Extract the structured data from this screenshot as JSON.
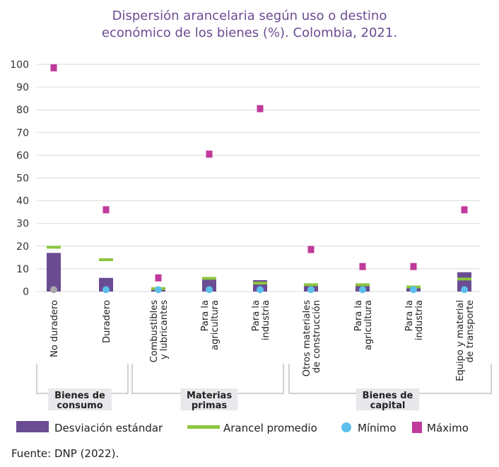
{
  "chart_data": {
    "type": "bar",
    "title_lines": [
      "Dispersión arancelaria según uso o destino",
      "económico de los bienes (%). Colombia, 2021."
    ],
    "ylim": [
      0,
      100
    ],
    "yticks": [
      "0",
      "10",
      "20",
      "30",
      "40",
      "50",
      "60",
      "70",
      "80",
      "90",
      "100"
    ],
    "categories": [
      {
        "lines": [
          "No duradero"
        ]
      },
      {
        "lines": [
          "Duradero"
        ]
      },
      {
        "lines": [
          "Combustibles",
          "y lubricantes"
        ]
      },
      {
        "lines": [
          "Para la",
          "agricultura"
        ]
      },
      {
        "lines": [
          "Para la",
          "industria"
        ]
      },
      {
        "lines": [
          "Otros materiales",
          "de construcción"
        ]
      },
      {
        "lines": [
          "Para la",
          "agricultura"
        ]
      },
      {
        "lines": [
          "Para la",
          "industria"
        ]
      },
      {
        "lines": [
          "Equipo y material",
          "de transporte"
        ]
      }
    ],
    "groups": [
      {
        "lines": [
          "Bienes de",
          "consumo"
        ],
        "from": 0,
        "to": 1
      },
      {
        "lines": [
          "Materias",
          "primas"
        ],
        "from": 2,
        "to": 4
      },
      {
        "lines": [
          "Bienes de",
          "capital"
        ],
        "from": 5,
        "to": 8
      }
    ],
    "series": [
      {
        "name": "Desviación estándar",
        "marker": "bar",
        "color": "#6a4c93",
        "values": [
          17,
          6,
          1,
          6,
          5,
          3,
          2.5,
          2,
          8.5
        ]
      },
      {
        "name": "Arancel promedio",
        "marker": "dash",
        "color": "#8cc63f",
        "values": [
          19.5,
          14,
          1.3,
          5.8,
          3.7,
          3,
          3,
          2,
          5.5
        ]
      },
      {
        "name": "Mínimo",
        "marker": "circle",
        "color": "#5bc0eb",
        "values": [
          0.5,
          0.5,
          0.5,
          0.5,
          0.5,
          0.5,
          0.5,
          0.5,
          0.5
        ]
      },
      {
        "name": "Máximo",
        "marker": "square",
        "color": "#c0399b",
        "values": [
          98.5,
          36,
          6,
          60.5,
          80.5,
          18.5,
          11,
          11,
          36
        ]
      }
    ],
    "min_first_point_color": "#a9a9a9",
    "source": "Fuente: DNP (2022).",
    "grid": true,
    "legend_position": "bottom"
  }
}
